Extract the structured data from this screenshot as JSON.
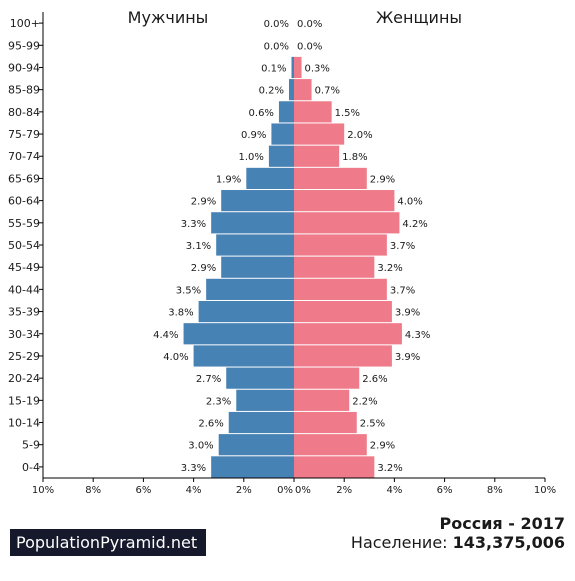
{
  "chart_data": {
    "type": "bar",
    "orientation": "horizontal-population-pyramid",
    "categories": [
      "0-4",
      "5-9",
      "10-14",
      "15-19",
      "20-24",
      "25-29",
      "30-34",
      "35-39",
      "40-44",
      "45-49",
      "50-54",
      "55-59",
      "60-64",
      "65-69",
      "70-74",
      "75-79",
      "80-84",
      "85-89",
      "90-94",
      "95-99",
      "100+"
    ],
    "series": [
      {
        "name": "Мужчины",
        "side": "left",
        "values": [
          3.3,
          3.0,
          2.6,
          2.3,
          2.7,
          4.0,
          4.4,
          3.8,
          3.5,
          2.9,
          3.1,
          3.3,
          2.9,
          1.9,
          1.0,
          0.9,
          0.6,
          0.2,
          0.1,
          0.0,
          0.0
        ],
        "labels": [
          "3.3%",
          "3.0%",
          "2.6%",
          "2.3%",
          "2.7%",
          "4.0%",
          "4.4%",
          "3.8%",
          "3.5%",
          "2.9%",
          "3.1%",
          "3.3%",
          "2.9%",
          "1.9%",
          "1.0%",
          "0.9%",
          "0.6%",
          "0.2%",
          "0.1%",
          "0.0%",
          "0.0%"
        ]
      },
      {
        "name": "Женщины",
        "side": "right",
        "values": [
          3.2,
          2.9,
          2.5,
          2.2,
          2.6,
          3.9,
          4.3,
          3.9,
          3.7,
          3.2,
          3.7,
          4.2,
          4.0,
          2.9,
          1.8,
          2.0,
          1.5,
          0.7,
          0.3,
          0.0,
          0.0
        ],
        "labels": [
          "3.2%",
          "2.9%",
          "2.5%",
          "2.2%",
          "2.6%",
          "3.9%",
          "4.3%",
          "3.9%",
          "3.7%",
          "3.2%",
          "3.7%",
          "4.2%",
          "4.0%",
          "2.9%",
          "1.8%",
          "2.0%",
          "1.5%",
          "0.7%",
          "0.3%",
          "0.0%",
          "0.0%"
        ]
      }
    ],
    "xlim": [
      0,
      10
    ],
    "x_ticks": {
      "left": [
        "10%",
        "8%",
        "6%",
        "4%",
        "2%",
        "0%"
      ],
      "right": [
        "0%",
        "2%",
        "4%",
        "6%",
        "8%",
        "10%"
      ]
    },
    "grid": false
  },
  "colors": {
    "male": "#4682b4",
    "female": "#ef7b8a",
    "axis": "#000000",
    "text": "#1a1a1a"
  },
  "footer": {
    "brand": "PopulationPyramid.net",
    "country_year": "Россия - 2017",
    "population_label": "Население:",
    "population_value": "143,375,006"
  }
}
